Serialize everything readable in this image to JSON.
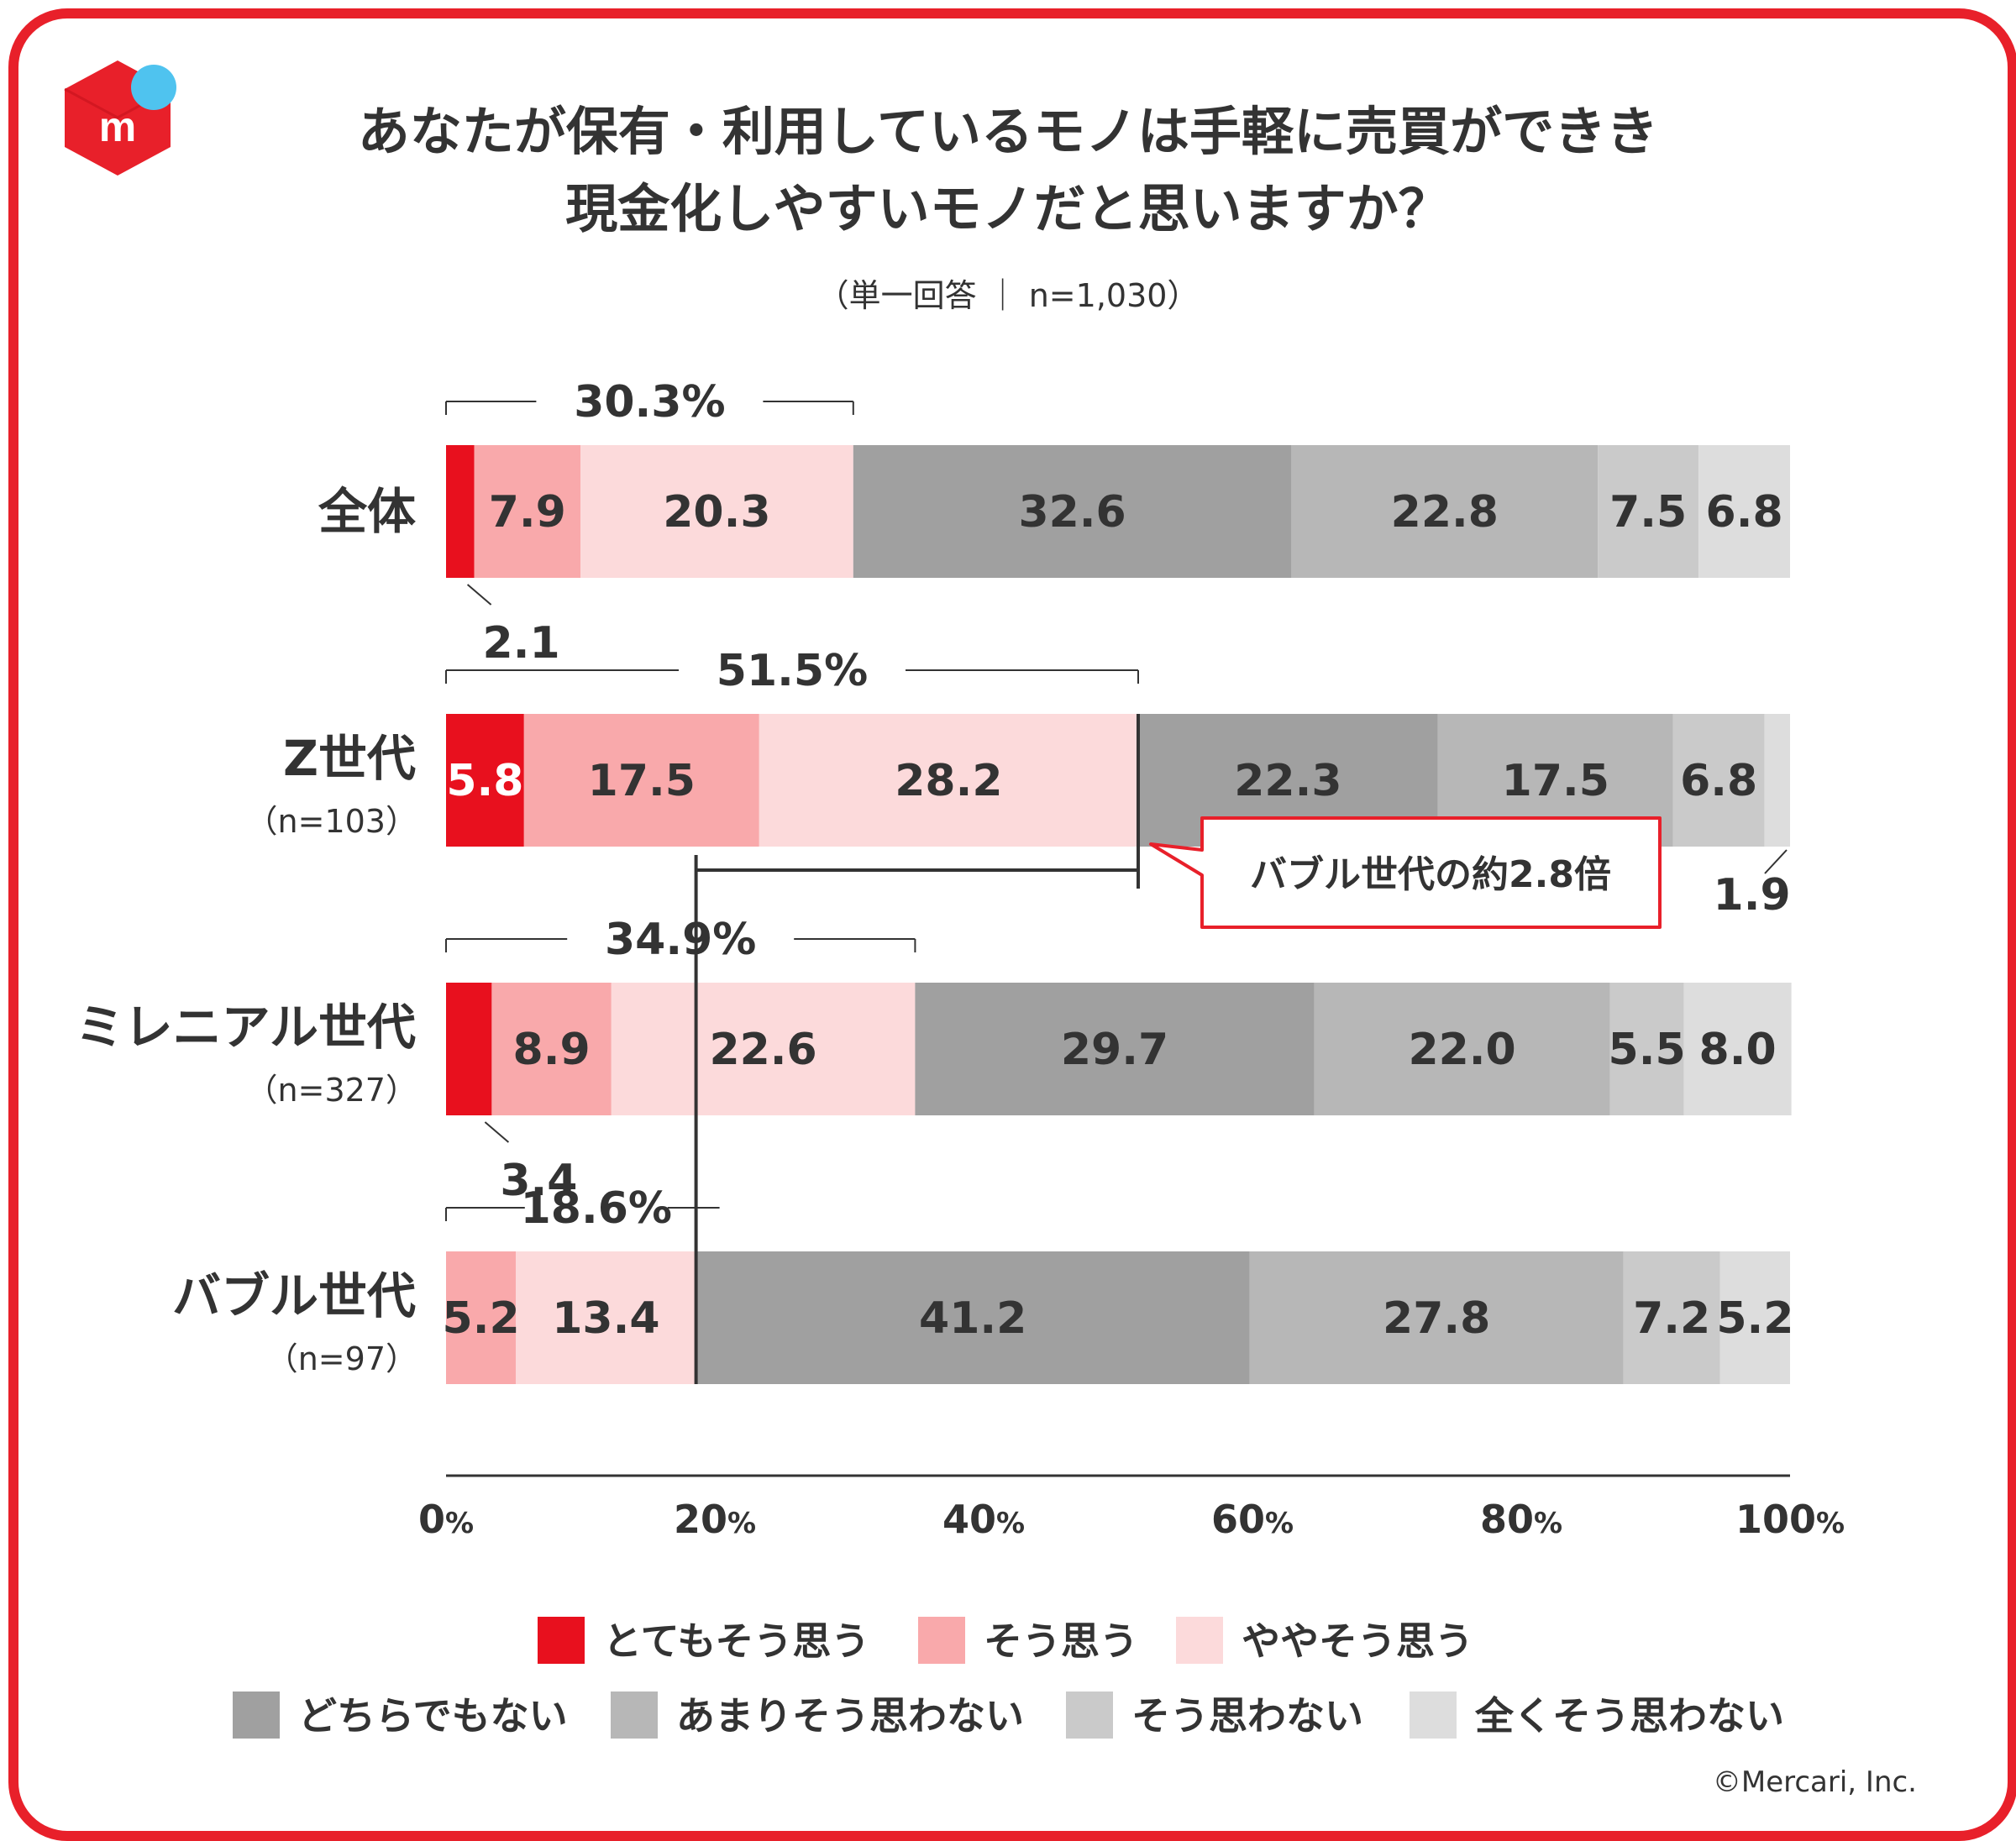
{
  "chart_data": {
    "type": "bar",
    "orientation": "horizontal-stacked-100",
    "title_lines": [
      "あなたが保有・利用しているモノは手軽に売買ができき",
      "現金化しやすいモノだと思いますか？"
    ],
    "subtitle": "（単一回答 ｜ n=1,030）",
    "series": [
      {
        "name": "とてもそう思う",
        "color": "#e8101e",
        "label_color": "#ffffff"
      },
      {
        "name": "そう思う",
        "color": "#f9a9ab",
        "label_color": "#333333"
      },
      {
        "name": "ややそう思う",
        "color": "#fcdadb",
        "label_color": "#333333"
      },
      {
        "name": "どちらでもない",
        "color": "#a0a0a0",
        "label_color": "#333333"
      },
      {
        "name": "あまりそう思わない",
        "color": "#b7b7b7",
        "label_color": "#333333"
      },
      {
        "name": "そう思わない",
        "color": "#cacaca",
        "label_color": "#333333"
      },
      {
        "name": "全くそう思わない",
        "color": "#dddddd",
        "label_color": "#333333"
      }
    ],
    "categories": [
      {
        "label": "全体",
        "n_label": "",
        "values": [
          2.1,
          7.9,
          20.3,
          32.6,
          22.8,
          7.5,
          6.8
        ],
        "labels": [
          "2.1",
          "7.9",
          "20.3",
          "32.6",
          "22.8",
          "7.5",
          "6.8"
        ],
        "top2_total": "30.3%"
      },
      {
        "label": "Z世代",
        "n_label": "（n=103）",
        "values": [
          5.8,
          17.5,
          28.2,
          22.3,
          17.5,
          6.8,
          1.9
        ],
        "labels": [
          "5.8",
          "17.5",
          "28.2",
          "22.3",
          "17.5",
          "6.8",
          "1.9"
        ],
        "top2_total": "51.5%"
      },
      {
        "label": "ミレニアル世代",
        "n_label": "（n=327）",
        "values": [
          3.4,
          8.9,
          22.6,
          29.7,
          22.0,
          5.5,
          8.0
        ],
        "labels": [
          "3.4",
          "8.9",
          "22.6",
          "29.7",
          "22.0",
          "5.5",
          "8.0"
        ],
        "top2_total": "34.9%"
      },
      {
        "label": "バブル世代",
        "n_label": "（n=97）",
        "values": [
          0,
          5.2,
          13.4,
          41.2,
          27.8,
          7.2,
          5.2
        ],
        "labels": [
          "",
          "5.2",
          "13.4",
          "41.2",
          "27.8",
          "7.2",
          "5.2"
        ],
        "top2_total": "18.6%"
      }
    ],
    "x_ticks": [
      {
        "num": "0",
        "pct": "%"
      },
      {
        "num": "20",
        "pct": "%"
      },
      {
        "num": "40",
        "pct": "%"
      },
      {
        "num": "60",
        "pct": "%"
      },
      {
        "num": "80",
        "pct": "%"
      },
      {
        "num": "100",
        "pct": "%"
      }
    ],
    "xlim": [
      0,
      100
    ],
    "callout": "バブル世代の約2.8倍",
    "copyright": "©Mercari, Inc."
  }
}
